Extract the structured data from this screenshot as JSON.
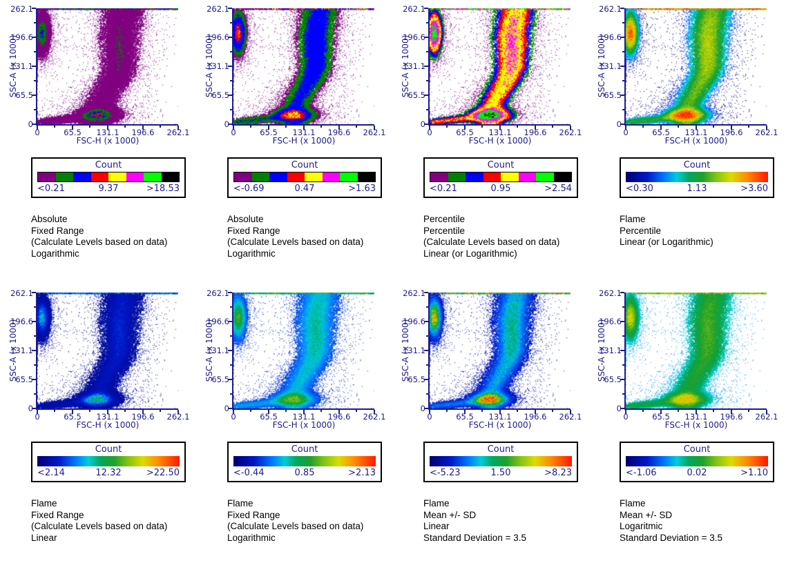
{
  "axes": {
    "x_label": "FSC-H (x 1000)",
    "y_label": "SSC-A (x 1000)",
    "x_ticks": [
      "0",
      "65.5",
      "131.1",
      "196.6",
      "262.1"
    ],
    "y_ticks": [
      "262.1",
      "196.6",
      "131.1",
      "65.5",
      "0"
    ]
  },
  "legend": {
    "title": "Count"
  },
  "colors": {
    "axis": "#1b1b8e",
    "caption_text": "#000000",
    "legend_border": "#000000",
    "discrete_palette": [
      "#800080",
      "#008000",
      "#0000FF",
      "#FF0000",
      "#FFFF00",
      "#FF00FF",
      "#00FF00",
      "#000000"
    ],
    "flame_stops": [
      [
        0,
        "#000070"
      ],
      [
        0.15,
        "#0018C8"
      ],
      [
        0.27,
        "#0077FF"
      ],
      [
        0.36,
        "#00CCD8"
      ],
      [
        0.44,
        "#00A860"
      ],
      [
        0.54,
        "#20A02C"
      ],
      [
        0.64,
        "#86C414"
      ],
      [
        0.74,
        "#DCDC00"
      ],
      [
        0.85,
        "#FF8C00"
      ],
      [
        1,
        "#FF1800"
      ]
    ]
  },
  "chart_data": {
    "type": "heatmap",
    "subtype": "flow cytometry 2D density dot plots; 8 panels of the same FSC-H vs SSC-A data shown with different color-level settings",
    "xlabel": "FSC-H (x 1000)",
    "ylabel": "SSC-A (x 1000)",
    "xlim": [
      0,
      262.1
    ],
    "ylim": [
      0,
      262.1
    ],
    "xticks": [
      0,
      65.5,
      131.1,
      196.6,
      262.1
    ],
    "yticks": [
      0,
      65.5,
      131.1,
      196.6,
      262.1
    ],
    "grid": false,
    "legend_title": "Count",
    "legend_position": "boxed color scale below each panel",
    "clusters": [
      {
        "name": "high-SSC low-FSC population",
        "center_x": 10,
        "center_y": 205,
        "spread_x": 7,
        "spread_y": 23,
        "note": "touches left axis and top edge"
      },
      {
        "name": "main vertical band",
        "x_center_bottom": 112,
        "x_center_top": 152,
        "y_range": [
          0,
          262.1
        ],
        "x_spread": 15
      },
      {
        "name": "low-SSC population",
        "center_x": 112,
        "center_y": 22,
        "spread_x": 20,
        "spread_y": 8,
        "note": "densest cluster (global count maximum)"
      },
      {
        "name": "diagonal debris streak",
        "from": [
          0,
          5
        ],
        "to": [
          95,
          18
        ]
      },
      {
        "name": "pile-up line at SSC-A maximum",
        "y": 262.1
      }
    ],
    "panels": [
      {
        "colormap": "discrete8",
        "legend": {
          "min": "<0.21",
          "mid": "9.37",
          "max": ">18.53"
        },
        "scale_values": [
          0.21,
          9.37,
          18.53
        ],
        "caption": "Absolute\nFixed Range\n(Calculate Levels based on data)\nLogarithmic"
      },
      {
        "colormap": "discrete8",
        "legend": {
          "min": "<-0.69",
          "mid": "0.47",
          "max": ">1.63"
        },
        "scale_values": [
          -0.69,
          0.47,
          1.63
        ],
        "caption": "Absolute\nFixed Range\n(Calculate Levels based on data)\nLogarithmic"
      },
      {
        "colormap": "discrete8",
        "legend": {
          "min": "<0.21",
          "mid": "0.95",
          "max": ">2.54"
        },
        "scale_values": [
          0.21,
          0.95,
          2.54
        ],
        "caption": "Percentile\nPercentile\n(Calculate Levels based on data)\nLinear (or Logarithmic)"
      },
      {
        "colormap": "flame",
        "legend": {
          "min": "<0.30",
          "mid": "1.13",
          "max": ">3.60"
        },
        "scale_values": [
          0.3,
          1.13,
          3.6
        ],
        "caption": "Flame\nPercentile\nLinear (or Logarithmic)"
      },
      {
        "colormap": "flame",
        "legend": {
          "min": "<2.14",
          "mid": "12.32",
          "max": ">22.50"
        },
        "scale_values": [
          2.14,
          12.32,
          22.5
        ],
        "caption": "Flame\nFixed Range\n(Calculate Levels based on data)\nLinear"
      },
      {
        "colormap": "flame",
        "legend": {
          "min": "<-0.44",
          "mid": "0.85",
          "max": ">2.13"
        },
        "scale_values": [
          -0.44,
          0.85,
          2.13
        ],
        "caption": "Flame\nFixed Range\n(Calculate Levels based on data)\nLogarithmic"
      },
      {
        "colormap": "flame",
        "legend": {
          "min": "<-5.23",
          "mid": "1.50",
          "max": ">8.23"
        },
        "scale_values": [
          -5.23,
          1.5,
          8.23
        ],
        "caption": "Flame\nMean +/- SD\nLinear\nStandard Deviation = 3.5"
      },
      {
        "colormap": "flame",
        "legend": {
          "min": "<-1.06",
          "mid": "0.02",
          "max": ">1.10"
        },
        "scale_values": [
          -1.06,
          0.02,
          1.1
        ],
        "caption": "Flame\nMean +/- SD\nLogaritmic\nStandard Deviation = 3.5"
      }
    ]
  }
}
